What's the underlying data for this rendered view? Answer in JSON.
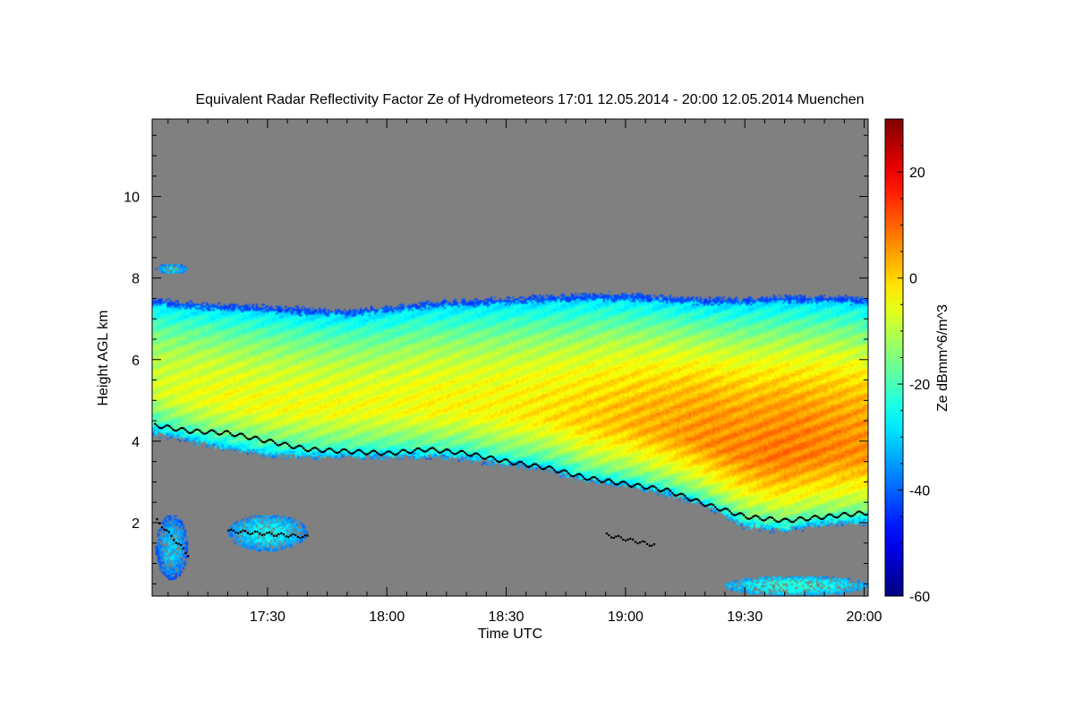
{
  "chart_data": {
    "type": "heatmap",
    "title": "Equivalent Radar Reflectivity Factor Ze of Hydrometeors   17:01 12.05.2014 - 20:00 12.05.2014 Muenchen",
    "xlabel": "Time UTC",
    "ylabel": "Height AGL km",
    "xlim_minutes_utc": [
      1021,
      1201
    ],
    "ylim_km": [
      0.2,
      11.9
    ],
    "x_ticks": [
      {
        "minute": 1050,
        "label": "17:30"
      },
      {
        "minute": 1080,
        "label": "18:00"
      },
      {
        "minute": 1110,
        "label": "18:30"
      },
      {
        "minute": 1140,
        "label": "19:00"
      },
      {
        "minute": 1170,
        "label": "19:30"
      },
      {
        "minute": 1200,
        "label": "20:00"
      }
    ],
    "y_ticks": [
      {
        "value": 2,
        "label": "2"
      },
      {
        "value": 4,
        "label": "4"
      },
      {
        "value": 6,
        "label": "6"
      },
      {
        "value": 8,
        "label": "8"
      },
      {
        "value": 10,
        "label": "10"
      }
    ],
    "colorbar": {
      "label": "Ze dBmm^6/m^3",
      "range": [
        -60,
        30
      ],
      "ticks": [
        {
          "value": -60,
          "label": "-60"
        },
        {
          "value": -40,
          "label": "-40"
        },
        {
          "value": -20,
          "label": "-20"
        },
        {
          "value": 0,
          "label": "0"
        },
        {
          "value": 20,
          "label": "20"
        }
      ]
    },
    "main_layer": {
      "minutes": [
        1021,
        1030,
        1040,
        1050,
        1060,
        1070,
        1080,
        1090,
        1100,
        1110,
        1120,
        1130,
        1140,
        1150,
        1160,
        1170,
        1180,
        1190,
        1201
      ],
      "top_km": [
        7.5,
        7.4,
        7.35,
        7.3,
        7.25,
        7.2,
        7.3,
        7.4,
        7.45,
        7.5,
        7.55,
        7.6,
        7.6,
        7.55,
        7.5,
        7.5,
        7.55,
        7.55,
        7.5
      ],
      "base_km": [
        4.2,
        4.0,
        3.8,
        3.65,
        3.6,
        3.6,
        3.6,
        3.6,
        3.55,
        3.4,
        3.3,
        3.0,
        2.9,
        2.7,
        2.4,
        1.9,
        1.8,
        1.95,
        2.0
      ],
      "peak_ze_dbz": [
        -8,
        -6,
        -5,
        -5,
        -5,
        -5,
        -5,
        -4,
        -4,
        -3,
        -2,
        0,
        2,
        4,
        6,
        7,
        8,
        7,
        6
      ],
      "cloud_base_marks_km": [
        4.4,
        4.25,
        4.2,
        4.0,
        3.8,
        3.75,
        3.7,
        3.8,
        3.7,
        3.5,
        3.35,
        3.1,
        2.95,
        2.8,
        2.45,
        2.15,
        2.05,
        2.15,
        2.25
      ]
    },
    "minor_echoes": [
      {
        "kind": "cell",
        "t0": 1022,
        "t1": 1030,
        "z0": 0.6,
        "z1": 2.2,
        "ze_dbz": -42
      },
      {
        "kind": "cell",
        "t0": 1040,
        "t1": 1060,
        "z0": 1.3,
        "z1": 2.2,
        "ze_dbz": -38
      },
      {
        "kind": "cell",
        "t0": 1022,
        "t1": 1030,
        "z0": 8.1,
        "z1": 8.35,
        "ze_dbz": -40
      },
      {
        "kind": "cell",
        "t0": 1165,
        "t1": 1201,
        "z0": 0.2,
        "z1": 0.7,
        "ze_dbz": -35
      }
    ],
    "base_marks_extra": [
      {
        "t0": 1022,
        "t1": 1030,
        "z0": 2.05,
        "z1": 1.2
      },
      {
        "t0": 1040,
        "t1": 1060,
        "z0": 1.8,
        "z1": 1.65
      },
      {
        "t0": 1135,
        "t1": 1147,
        "z0": 1.7,
        "z1": 1.45
      }
    ],
    "colors": {
      "no_data": "#808080",
      "cloud_base": "#000000"
    }
  }
}
